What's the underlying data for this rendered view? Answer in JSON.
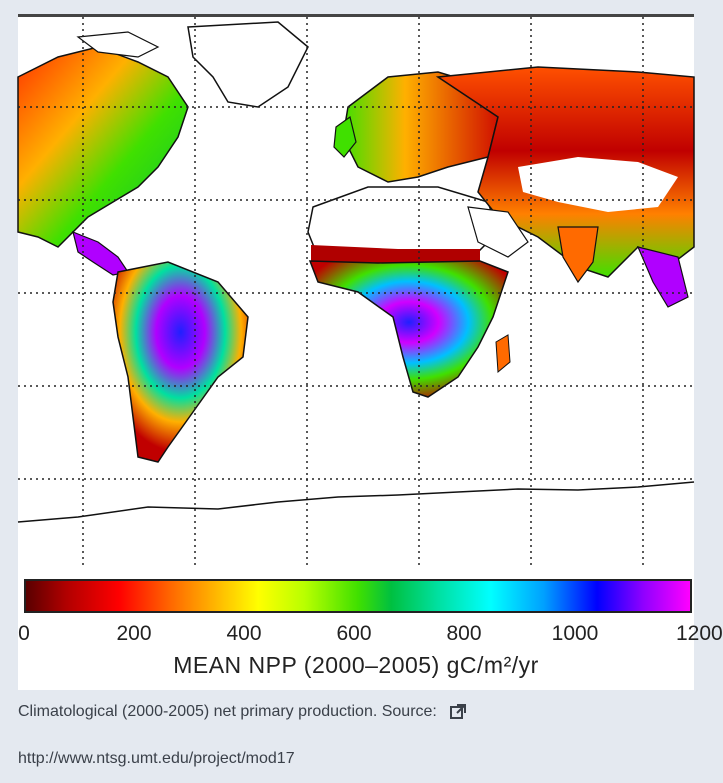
{
  "map": {
    "colorbar": {
      "ticks": [
        "0",
        "200",
        "400",
        "600",
        "800",
        "1000",
        "1200"
      ],
      "label": "MEAN NPP (2000–2005) gC/m²/yr",
      "colors": [
        "#5a0000",
        "#ff0000",
        "#ffff00",
        "#40e000",
        "#00ffff",
        "#0000ff",
        "#ff00ff"
      ]
    }
  },
  "caption": {
    "text": "Climatological (2000-2005) net primary production. Source:",
    "icon": "external-link-icon"
  },
  "source_link": {
    "text": "http://www.ntsg.umt.edu/project/mod17"
  }
}
